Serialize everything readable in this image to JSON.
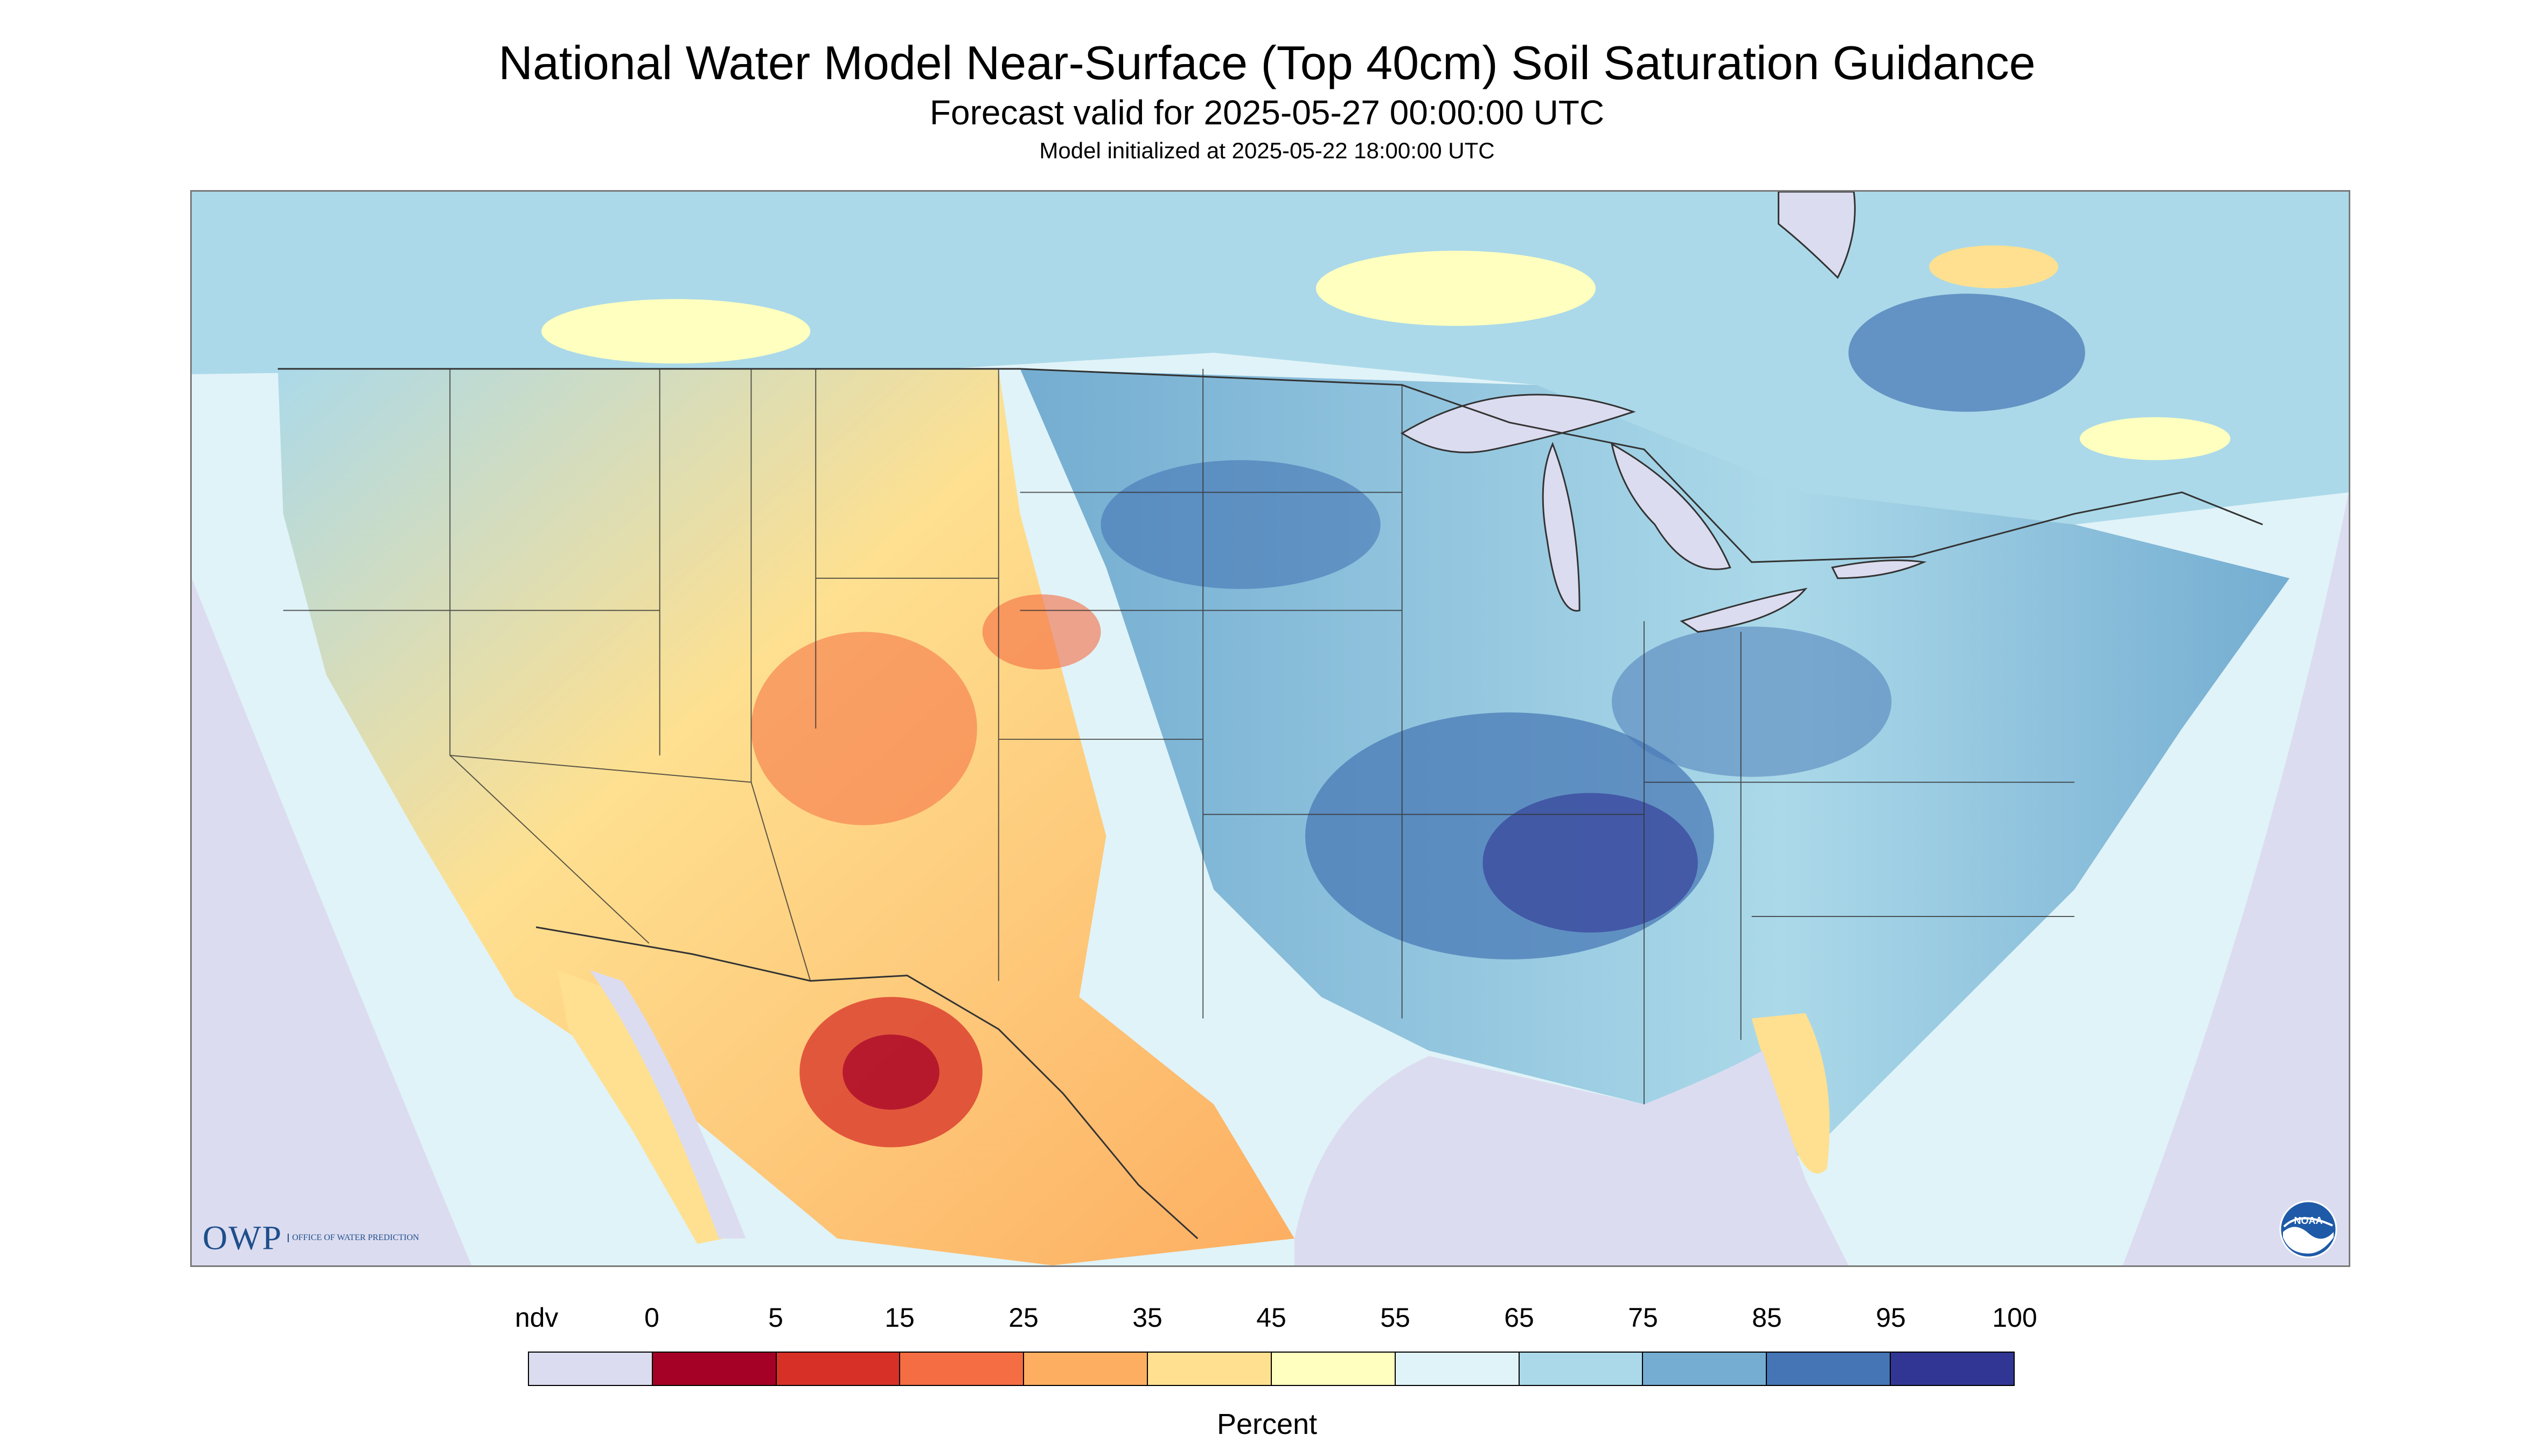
{
  "titles": {
    "main": "National Water Model Near-Surface (Top 40cm) Soil Saturation Guidance",
    "forecast": "Forecast valid for 2025-05-27 00:00:00 UTC",
    "init": "Model initialized at 2025-05-22 18:00:00 UTC"
  },
  "logos": {
    "owp": "OWP",
    "owp_sub": "OFFICE OF WATER PREDICTION",
    "noaa": "NOAA"
  },
  "legend": {
    "unit": "Percent",
    "labels": [
      "ndv",
      "0",
      "5",
      "15",
      "25",
      "35",
      "45",
      "55",
      "65",
      "75",
      "85",
      "95",
      "100"
    ],
    "colors": [
      "#dcdcf0",
      "#a50026",
      "#d73027",
      "#f46d43",
      "#fdae61",
      "#fee090",
      "#ffffbf",
      "#e0f3f8",
      "#abd9e9",
      "#74add1",
      "#4575b4",
      "#313695"
    ]
  },
  "map": {
    "background_color": "#dcdcf0",
    "water_color": "#dcdcf0",
    "boundary_color": "#333333"
  }
}
